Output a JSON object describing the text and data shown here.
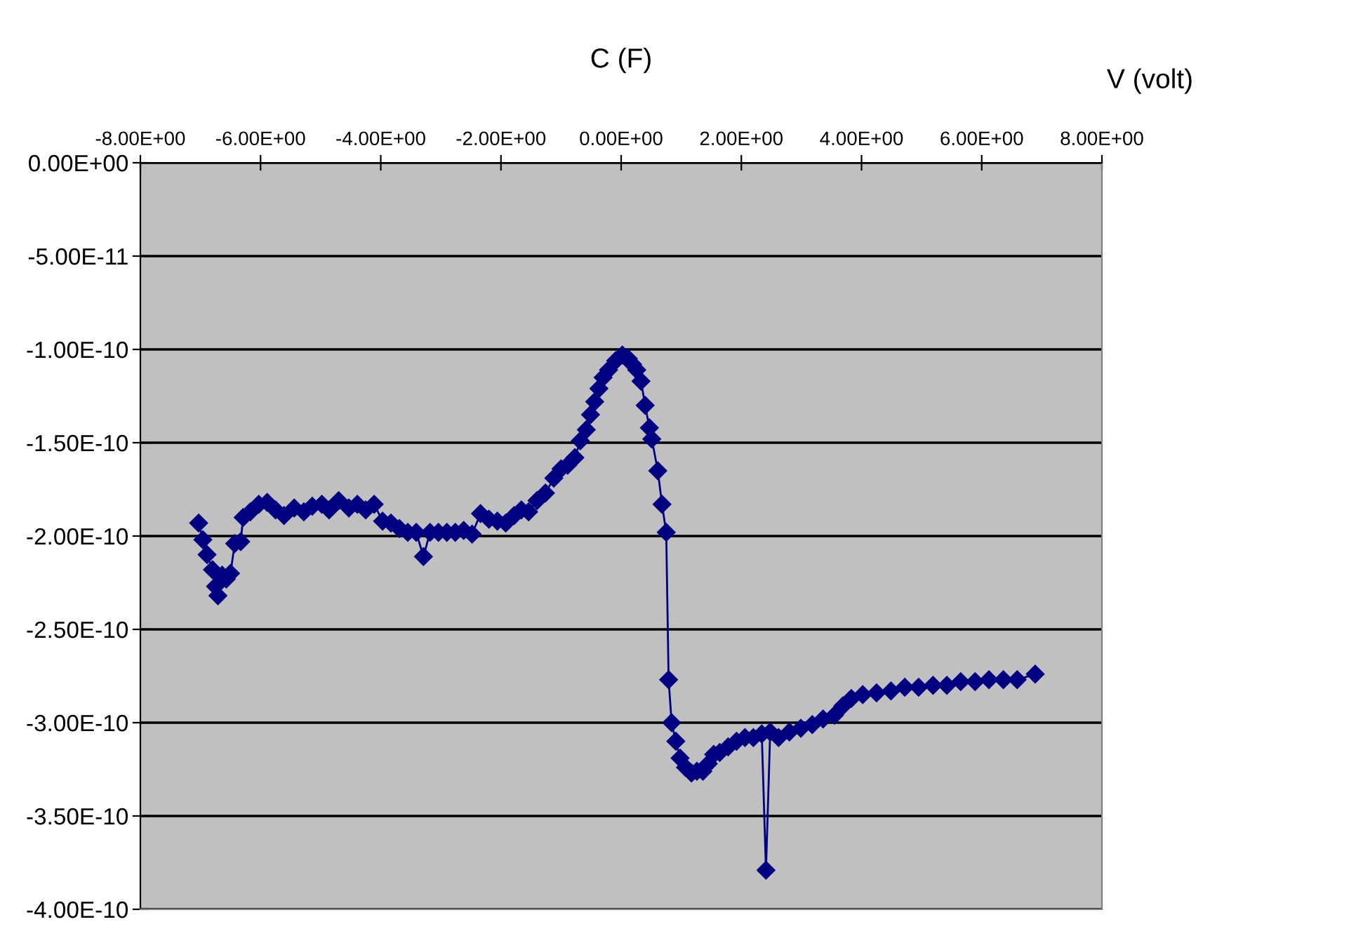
{
  "chart_data": {
    "type": "line",
    "xlabel": "V (volt)",
    "ylabel": "C (F)",
    "xlim": [
      -8,
      8
    ],
    "ylim": [
      -4e-10,
      0
    ],
    "xticks": [
      {
        "value": -8,
        "label": "-8.00E+00"
      },
      {
        "value": -6,
        "label": "-6.00E+00"
      },
      {
        "value": -4,
        "label": "-4.00E+00"
      },
      {
        "value": -2,
        "label": "-2.00E+00"
      },
      {
        "value": 0,
        "label": "0.00E+00"
      },
      {
        "value": 2,
        "label": "2.00E+00"
      },
      {
        "value": 4,
        "label": "4.00E+00"
      },
      {
        "value": 6,
        "label": "6.00E+00"
      },
      {
        "value": 8,
        "label": "8.00E+00"
      }
    ],
    "yticks": [
      {
        "value": 0,
        "label": "0.00E+00"
      },
      {
        "value": -5e-11,
        "label": "-5.00E-11"
      },
      {
        "value": -1e-10,
        "label": "-1.00E-10"
      },
      {
        "value": -1.5e-10,
        "label": "-1.50E-10"
      },
      {
        "value": -2e-10,
        "label": "-2.00E-10"
      },
      {
        "value": -2.5e-10,
        "label": "-2.50E-10"
      },
      {
        "value": -3e-10,
        "label": "-3.00E-10"
      },
      {
        "value": -3.5e-10,
        "label": "-3.50E-10"
      },
      {
        "value": -4e-10,
        "label": "-4.00E-10"
      }
    ],
    "grid": "y",
    "marker": "diamond",
    "line_style": "solid",
    "series": [
      {
        "color": "#000080",
        "x": [
          -7.03,
          -6.96,
          -6.89,
          -6.8,
          -6.75,
          -6.71,
          -6.64,
          -6.57,
          -6.5,
          -6.43,
          -6.33,
          -6.29,
          -6.17,
          -6.03,
          -5.89,
          -5.75,
          -5.61,
          -5.44,
          -5.28,
          -5.14,
          -4.98,
          -4.86,
          -4.7,
          -4.53,
          -4.39,
          -4.25,
          -4.11,
          -3.97,
          -3.83,
          -3.69,
          -3.55,
          -3.41,
          -3.29,
          -3.18,
          -3.04,
          -2.9,
          -2.76,
          -2.62,
          -2.48,
          -2.34,
          -2.2,
          -2.06,
          -1.92,
          -1.78,
          -1.66,
          -1.54,
          -1.4,
          -1.26,
          -1.12,
          -1.0,
          -0.89,
          -0.77,
          -0.68,
          -0.58,
          -0.51,
          -0.44,
          -0.37,
          -0.3,
          -0.21,
          -0.09,
          0.02,
          0.12,
          0.19,
          0.26,
          0.33,
          0.4,
          0.47,
          0.51,
          0.61,
          0.68,
          0.75,
          0.79,
          0.84,
          0.91,
          0.98,
          1.07,
          1.17,
          1.26,
          1.36,
          1.45,
          1.54,
          1.64,
          1.78,
          1.92,
          2.06,
          2.2,
          2.34,
          2.41,
          2.48,
          2.62,
          2.8,
          2.99,
          3.18,
          3.36,
          3.55,
          3.69,
          3.83,
          4.02,
          4.25,
          4.49,
          4.72,
          4.95,
          5.19,
          5.42,
          5.65,
          5.89,
          6.12,
          6.36,
          6.59,
          6.89
        ],
        "values": [
          -1.93e-10,
          -2.02e-10,
          -2.1e-10,
          -2.18e-10,
          -2.27e-10,
          -2.32e-10,
          -2.21e-10,
          -2.23e-10,
          -2.2e-10,
          -2.04e-10,
          -2.03e-10,
          -1.9e-10,
          -1.87e-10,
          -1.83e-10,
          -1.82e-10,
          -1.86e-10,
          -1.89e-10,
          -1.85e-10,
          -1.87e-10,
          -1.84e-10,
          -1.83e-10,
          -1.86e-10,
          -1.81e-10,
          -1.85e-10,
          -1.83e-10,
          -1.86e-10,
          -1.83e-10,
          -1.92e-10,
          -1.93e-10,
          -1.96e-10,
          -1.98e-10,
          -1.98e-10,
          -2.11e-10,
          -1.98e-10,
          -1.98e-10,
          -1.98e-10,
          -1.98e-10,
          -1.97e-10,
          -1.99e-10,
          -1.88e-10,
          -1.91e-10,
          -1.92e-10,
          -1.93e-10,
          -1.89e-10,
          -1.86e-10,
          -1.87e-10,
          -1.81e-10,
          -1.77e-10,
          -1.69e-10,
          -1.64e-10,
          -1.62e-10,
          -1.58e-10,
          -1.49e-10,
          -1.43e-10,
          -1.35e-10,
          -1.28e-10,
          -1.21e-10,
          -1.15e-10,
          -1.11e-10,
          -1.06e-10,
          -1.03e-10,
          -1.05e-10,
          -1.08e-10,
          -1.11e-10,
          -1.17e-10,
          -1.3e-10,
          -1.42e-10,
          -1.48e-10,
          -1.65e-10,
          -1.83e-10,
          -1.98e-10,
          -2.77e-10,
          -3e-10,
          -3.1e-10,
          -3.19e-10,
          -3.24e-10,
          -3.27e-10,
          -3.26e-10,
          -3.26e-10,
          -3.22e-10,
          -3.17e-10,
          -3.16e-10,
          -3.13e-10,
          -3.1e-10,
          -3.08e-10,
          -3.08e-10,
          -3.06e-10,
          -3.79e-10,
          -3.05e-10,
          -3.08e-10,
          -3.05e-10,
          -3.03e-10,
          -3.01e-10,
          -2.98e-10,
          -2.96e-10,
          -2.91e-10,
          -2.87e-10,
          -2.85e-10,
          -2.84e-10,
          -2.83e-10,
          -2.81e-10,
          -2.81e-10,
          -2.8e-10,
          -2.8e-10,
          -2.78e-10,
          -2.78e-10,
          -2.77e-10,
          -2.77e-10,
          -2.77e-10,
          -2.74e-10
        ]
      }
    ]
  }
}
